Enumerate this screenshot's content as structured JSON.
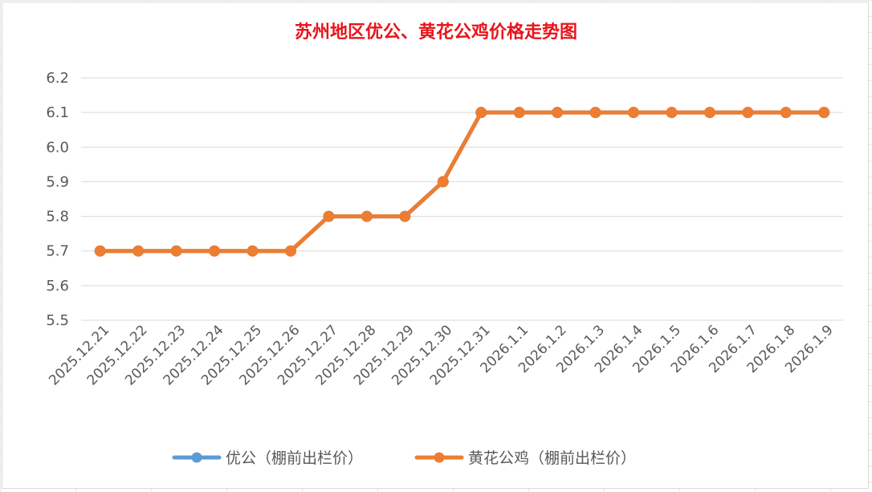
{
  "chart_data": {
    "type": "line",
    "title": "苏州地区优公、黄花公鸡价格走势图",
    "xlabel": "",
    "ylabel": "",
    "ylim": [
      5.5,
      6.2
    ],
    "yticks": [
      "5.5",
      "5.6",
      "5.7",
      "5.8",
      "5.9",
      "6.0",
      "6.1",
      "6.2"
    ],
    "grid": true,
    "legend_position": "bottom",
    "categories": [
      "2025.12.21",
      "2025.12.22",
      "2025.12.23",
      "2025.12.24",
      "2025.12.25",
      "2025.12.26",
      "2025.12.27",
      "2025.12.28",
      "2025.12.29",
      "2025.12.30",
      "2025.12.31",
      "2026.1.1",
      "2026.1.2",
      "2026.1.3",
      "2026.1.4",
      "2026.1.5",
      "2026.1.6",
      "2026.1.7",
      "2026.1.8",
      "2026.1.9"
    ],
    "series": [
      {
        "name": "优公（棚前出栏价）",
        "color": "#5b9bd5",
        "values": [
          5.7,
          5.7,
          5.7,
          5.7,
          5.7,
          5.7,
          5.8,
          5.8,
          5.8,
          5.9,
          6.1,
          6.1,
          6.1,
          6.1,
          6.1,
          6.1,
          6.1,
          6.1,
          6.1,
          6.1
        ]
      },
      {
        "name": "黄花公鸡（棚前出栏价）",
        "color": "#ed7d31",
        "values": [
          5.7,
          5.7,
          5.7,
          5.7,
          5.7,
          5.7,
          5.8,
          5.8,
          5.8,
          5.9,
          6.1,
          6.1,
          6.1,
          6.1,
          6.1,
          6.1,
          6.1,
          6.1,
          6.1,
          6.1
        ]
      }
    ]
  }
}
